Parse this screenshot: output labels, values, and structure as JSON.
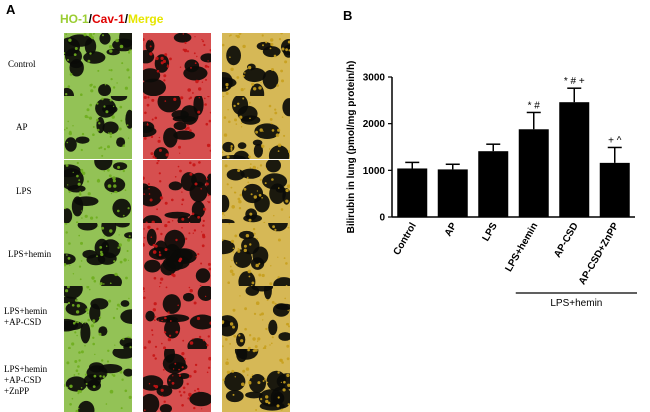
{
  "panel_a": {
    "letter": "A",
    "legend": [
      {
        "text": "HO-1",
        "color": "#9acd32"
      },
      {
        "text": "/",
        "color": "#000000"
      },
      {
        "text": "Cav-1",
        "color": "#e00000"
      },
      {
        "text": "/",
        "color": "#000000"
      },
      {
        "text": "Merge",
        "color": "#e6e600"
      }
    ],
    "rows": [
      {
        "label": [
          "Control"
        ]
      },
      {
        "label": [
          "AP"
        ]
      },
      {
        "label": [
          "LPS"
        ]
      },
      {
        "label": [
          "LPS+hemin"
        ]
      },
      {
        "label": [
          "LPS+hemin",
          "+AP-CSD"
        ]
      },
      {
        "label": [
          "LPS+hemin",
          "+AP-CSD",
          "+ZnPP"
        ]
      }
    ],
    "channel_colors": [
      "#6fae1e",
      "#c81414",
      "#c8a01e"
    ]
  },
  "panel_b": {
    "letter": "B",
    "group_label": "LPS+hemin"
  },
  "chart_data": {
    "type": "bar",
    "categories": [
      "Control",
      "AP",
      "LPS",
      "LPS+hemin",
      "AP-CSD",
      "AP-CSD+ZnPP"
    ],
    "values": [
      1040,
      1020,
      1410,
      1880,
      2460,
      1160
    ],
    "errors": [
      130,
      110,
      150,
      360,
      300,
      330
    ],
    "annotations": [
      "",
      "",
      "",
      "* #",
      "* # +",
      "+ ^"
    ],
    "ylabel": "Bilirubin in lung (pmol/mg protein/h)",
    "ylim": [
      0,
      3000
    ],
    "yticks": [
      0,
      1000,
      2000,
      3000
    ],
    "bar_color": "#000000"
  }
}
